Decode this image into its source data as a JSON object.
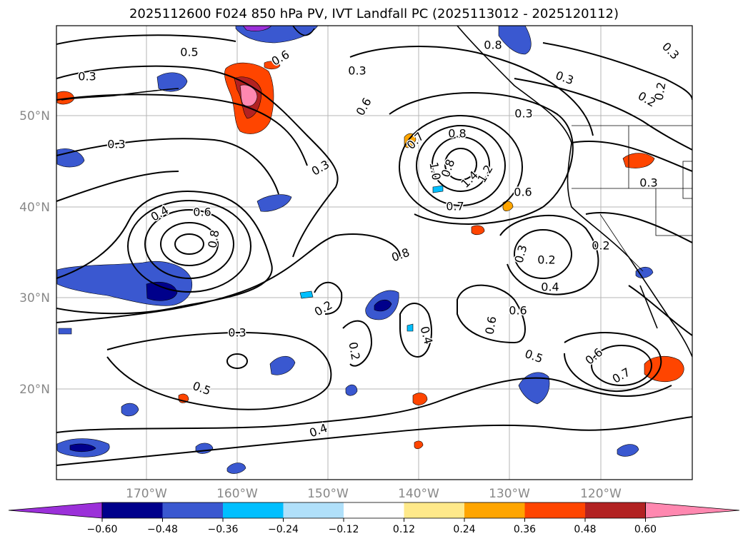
{
  "title": "2025112600 F024 850 hPa PV, IVT Landfall PC (2025113012 - 2025120112)",
  "map": {
    "lat_labels": [
      "50°N",
      "40°N",
      "30°N",
      "20°N"
    ],
    "lon_labels": [
      "170°W",
      "160°W",
      "150°W",
      "140°W",
      "130°W",
      "120°W"
    ],
    "contour_labels": [
      "0.3",
      "0.5",
      "0.6",
      "0.8",
      "0.3",
      "0.3",
      "0.8",
      "0.6",
      "0.7",
      "0.8",
      "0.3",
      "0.3",
      "0.8",
      "1.0",
      "1.4",
      "1.2",
      "0.6",
      "0.7",
      "0.4",
      "0.6",
      "0.8",
      "0.3",
      "0.3",
      "0.4",
      "0.2",
      "0.2",
      "0.6",
      "0.4",
      "0.6",
      "0.3",
      "0.2",
      "0.5",
      "0.4",
      "0.3",
      "0.3",
      "0.2",
      "0.2",
      "0.2",
      "0.5",
      "0.6",
      "0.7"
    ]
  },
  "colorbar": {
    "ticks": [
      "−0.60",
      "−0.48",
      "−0.36",
      "−0.24",
      "−0.12",
      "0.12",
      "0.24",
      "0.36",
      "0.48",
      "0.60"
    ],
    "colors": [
      "#9b30d9",
      "#00008b",
      "#3a58d0",
      "#00bfff",
      "#b0e0fa",
      "#ffffff",
      "#ffe98a",
      "#ffa500",
      "#ff4500",
      "#b22222",
      "#ff88b0"
    ]
  }
}
